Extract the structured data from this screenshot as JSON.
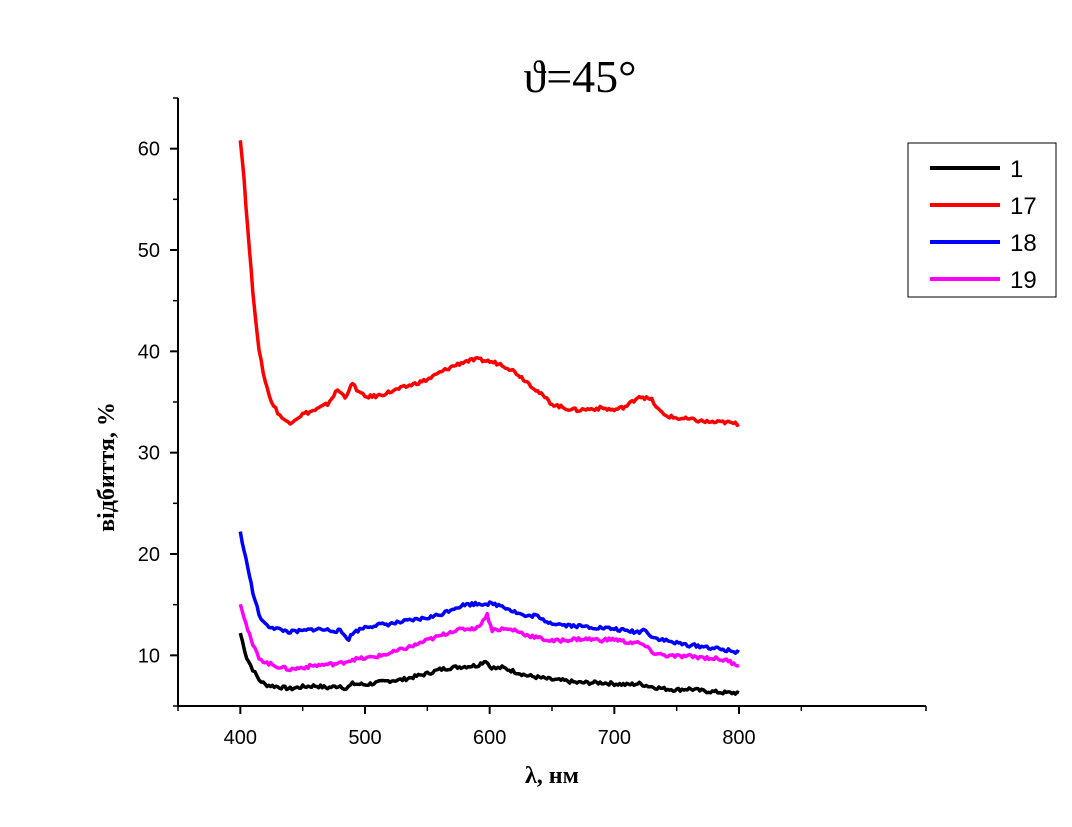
{
  "chart_data": {
    "type": "line",
    "title": "ϑ=45°",
    "xlabel": "λ, нм",
    "ylabel": "відбиття, %",
    "xlim": [
      350,
      950
    ],
    "ylim": [
      5,
      65
    ],
    "x_ticks": [
      400,
      500,
      600,
      700,
      800
    ],
    "y_ticks": [
      10,
      20,
      30,
      40,
      50,
      60
    ],
    "grid": false,
    "legend_position": "top-right",
    "series": [
      {
        "name": "1",
        "color": "#000000",
        "points": [
          [
            400,
            12.2
          ],
          [
            405,
            9.8
          ],
          [
            410,
            8.6
          ],
          [
            415,
            7.6
          ],
          [
            420,
            7.1
          ],
          [
            430,
            6.9
          ],
          [
            440,
            6.7
          ],
          [
            450,
            6.9
          ],
          [
            460,
            7.0
          ],
          [
            470,
            6.8
          ],
          [
            480,
            7.0
          ],
          [
            485,
            6.7
          ],
          [
            490,
            7.2
          ],
          [
            500,
            7.1
          ],
          [
            510,
            7.3
          ],
          [
            520,
            7.5
          ],
          [
            530,
            7.6
          ],
          [
            540,
            7.9
          ],
          [
            550,
            8.2
          ],
          [
            560,
            8.6
          ],
          [
            570,
            8.8
          ],
          [
            580,
            8.9
          ],
          [
            590,
            9.0
          ],
          [
            597,
            9.5
          ],
          [
            600,
            8.9
          ],
          [
            605,
            8.7
          ],
          [
            610,
            8.8
          ],
          [
            620,
            8.4
          ],
          [
            630,
            8.0
          ],
          [
            640,
            7.8
          ],
          [
            650,
            7.6
          ],
          [
            660,
            7.5
          ],
          [
            670,
            7.3
          ],
          [
            680,
            7.3
          ],
          [
            690,
            7.3
          ],
          [
            700,
            7.2
          ],
          [
            710,
            7.1
          ],
          [
            720,
            7.2
          ],
          [
            730,
            6.9
          ],
          [
            740,
            6.7
          ],
          [
            750,
            6.6
          ],
          [
            760,
            6.7
          ],
          [
            770,
            6.5
          ],
          [
            780,
            6.4
          ],
          [
            790,
            6.3
          ],
          [
            800,
            6.3
          ]
        ]
      },
      {
        "name": "17",
        "color": "#ff0000",
        "points": [
          [
            400,
            61.0
          ],
          [
            403,
            57.0
          ],
          [
            406,
            52.0
          ],
          [
            410,
            46.0
          ],
          [
            415,
            40.0
          ],
          [
            420,
            37.0
          ],
          [
            425,
            35.0
          ],
          [
            430,
            34.0
          ],
          [
            435,
            33.2
          ],
          [
            440,
            33.0
          ],
          [
            445,
            33.4
          ],
          [
            450,
            33.8
          ],
          [
            460,
            34.2
          ],
          [
            470,
            34.8
          ],
          [
            478,
            36.2
          ],
          [
            484,
            35.5
          ],
          [
            490,
            36.8
          ],
          [
            495,
            36.0
          ],
          [
            500,
            35.5
          ],
          [
            510,
            35.6
          ],
          [
            520,
            36.0
          ],
          [
            530,
            36.4
          ],
          [
            540,
            36.8
          ],
          [
            550,
            37.2
          ],
          [
            560,
            37.9
          ],
          [
            570,
            38.5
          ],
          [
            580,
            39.0
          ],
          [
            590,
            39.2
          ],
          [
            600,
            39.0
          ],
          [
            610,
            38.7
          ],
          [
            620,
            38.0
          ],
          [
            630,
            37.0
          ],
          [
            640,
            35.9
          ],
          [
            650,
            34.8
          ],
          [
            660,
            34.4
          ],
          [
            670,
            34.2
          ],
          [
            680,
            34.3
          ],
          [
            690,
            34.4
          ],
          [
            700,
            34.2
          ],
          [
            710,
            34.6
          ],
          [
            720,
            35.6
          ],
          [
            730,
            35.2
          ],
          [
            735,
            34.3
          ],
          [
            740,
            33.7
          ],
          [
            750,
            33.4
          ],
          [
            760,
            33.3
          ],
          [
            770,
            33.1
          ],
          [
            780,
            33.0
          ],
          [
            790,
            33.0
          ],
          [
            800,
            32.8
          ]
        ]
      },
      {
        "name": "18",
        "color": "#0000ff",
        "points": [
          [
            400,
            22.2
          ],
          [
            403,
            20.2
          ],
          [
            406,
            18.8
          ],
          [
            410,
            16.2
          ],
          [
            415,
            14.0
          ],
          [
            420,
            13.0
          ],
          [
            430,
            12.6
          ],
          [
            440,
            12.3
          ],
          [
            450,
            12.4
          ],
          [
            460,
            12.6
          ],
          [
            470,
            12.5
          ],
          [
            480,
            12.4
          ],
          [
            487,
            11.6
          ],
          [
            490,
            12.2
          ],
          [
            500,
            12.8
          ],
          [
            510,
            13.0
          ],
          [
            520,
            13.1
          ],
          [
            530,
            13.3
          ],
          [
            540,
            13.5
          ],
          [
            550,
            13.7
          ],
          [
            560,
            14.0
          ],
          [
            570,
            14.6
          ],
          [
            580,
            15.0
          ],
          [
            590,
            15.1
          ],
          [
            600,
            15.1
          ],
          [
            610,
            14.9
          ],
          [
            620,
            14.3
          ],
          [
            630,
            13.8
          ],
          [
            637,
            14.0
          ],
          [
            640,
            13.6
          ],
          [
            650,
            13.2
          ],
          [
            660,
            13.0
          ],
          [
            670,
            12.9
          ],
          [
            680,
            12.8
          ],
          [
            690,
            12.7
          ],
          [
            700,
            12.6
          ],
          [
            710,
            12.4
          ],
          [
            720,
            12.3
          ],
          [
            725,
            12.6
          ],
          [
            730,
            11.8
          ],
          [
            740,
            11.5
          ],
          [
            750,
            11.2
          ],
          [
            760,
            11.0
          ],
          [
            770,
            10.9
          ],
          [
            780,
            10.7
          ],
          [
            790,
            10.5
          ],
          [
            800,
            10.3
          ]
        ]
      },
      {
        "name": "19",
        "color": "#ff00ff",
        "points": [
          [
            400,
            15.2
          ],
          [
            403,
            13.8
          ],
          [
            406,
            12.5
          ],
          [
            410,
            11.0
          ],
          [
            415,
            9.8
          ],
          [
            420,
            9.3
          ],
          [
            430,
            8.9
          ],
          [
            440,
            8.6
          ],
          [
            450,
            8.8
          ],
          [
            460,
            9.0
          ],
          [
            470,
            9.1
          ],
          [
            480,
            9.2
          ],
          [
            490,
            9.6
          ],
          [
            500,
            9.7
          ],
          [
            510,
            9.9
          ],
          [
            520,
            10.2
          ],
          [
            530,
            10.6
          ],
          [
            540,
            11.0
          ],
          [
            550,
            11.5
          ],
          [
            560,
            11.9
          ],
          [
            570,
            12.4
          ],
          [
            580,
            12.6
          ],
          [
            590,
            12.7
          ],
          [
            598,
            14.0
          ],
          [
            602,
            12.5
          ],
          [
            610,
            12.6
          ],
          [
            620,
            12.5
          ],
          [
            630,
            12.0
          ],
          [
            640,
            11.7
          ],
          [
            650,
            11.4
          ],
          [
            660,
            11.5
          ],
          [
            670,
            11.6
          ],
          [
            680,
            11.6
          ],
          [
            690,
            11.5
          ],
          [
            700,
            11.6
          ],
          [
            710,
            11.3
          ],
          [
            720,
            11.2
          ],
          [
            725,
            10.9
          ],
          [
            730,
            10.3
          ],
          [
            740,
            10.0
          ],
          [
            750,
            9.9
          ],
          [
            760,
            9.9
          ],
          [
            770,
            9.8
          ],
          [
            780,
            9.7
          ],
          [
            790,
            9.5
          ],
          [
            800,
            9.0
          ]
        ]
      }
    ]
  }
}
